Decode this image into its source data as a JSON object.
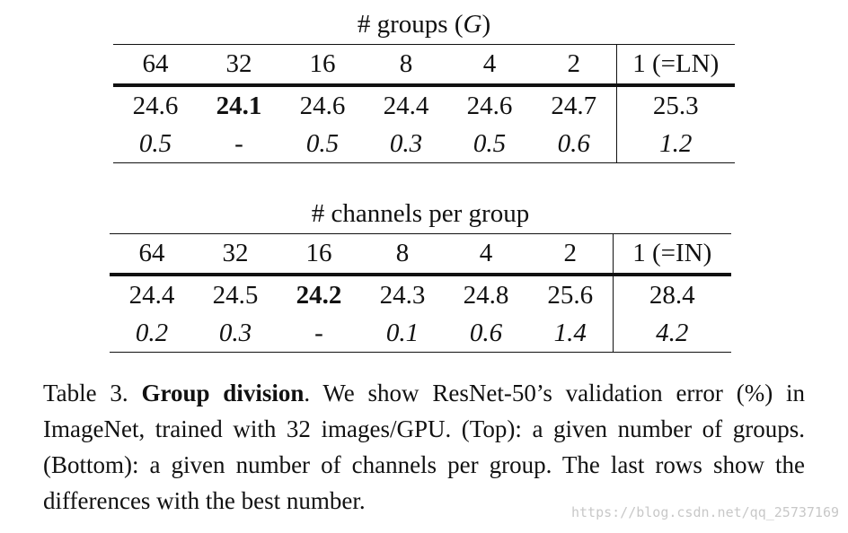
{
  "top_table": {
    "title_prefix": "# groups (",
    "title_var": "G",
    "title_suffix": ")",
    "headers": [
      "64",
      "32",
      "16",
      "8",
      "4",
      "2"
    ],
    "last_header": "1 (=LN)",
    "values": [
      "24.6",
      "24.1",
      "24.6",
      "24.4",
      "24.6",
      "24.7"
    ],
    "last_value": "25.3",
    "diffs": [
      "0.5",
      "-",
      "0.5",
      "0.3",
      "0.5",
      "0.6"
    ],
    "last_diff": "1.2",
    "best_index": 1
  },
  "bottom_table": {
    "title": "# channels per group",
    "headers": [
      "64",
      "32",
      "16",
      "8",
      "4",
      "2"
    ],
    "last_header": "1 (=IN)",
    "values": [
      "24.4",
      "24.5",
      "24.2",
      "24.3",
      "24.8",
      "25.6"
    ],
    "last_value": "28.4",
    "diffs": [
      "0.2",
      "0.3",
      "-",
      "0.1",
      "0.6",
      "1.4"
    ],
    "last_diff": "4.2",
    "best_index": 2
  },
  "caption": {
    "label": "Table 3.",
    "bold_title": "Group division",
    "text": ".  We show ResNet-50’s validation error (%) in ImageNet, trained with 32 images/GPU. (Top):  a given number of groups.  (Bottom):  a given number of channels per group. The last rows show the differences with the best number."
  },
  "watermark": "https://blog.csdn.net/qq_25737169"
}
